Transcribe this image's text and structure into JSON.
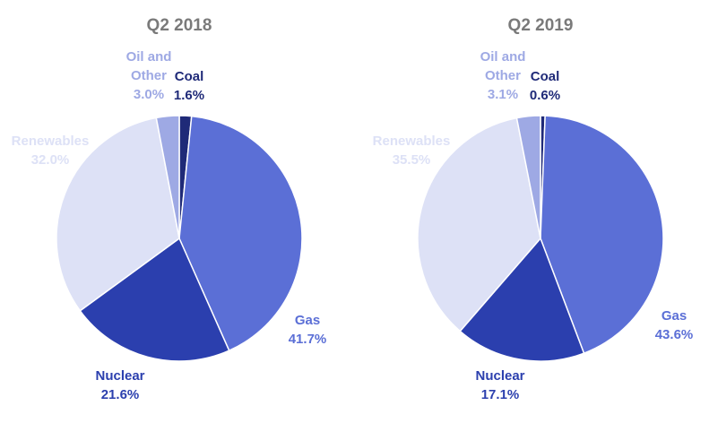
{
  "chart_data": [
    {
      "type": "pie",
      "title": "Q2 2018",
      "categories": [
        "Coal",
        "Gas",
        "Nuclear",
        "Renewables",
        "Oil and Other"
      ],
      "values": [
        1.6,
        41.7,
        21.6,
        32.0,
        3.0
      ],
      "value_labels": [
        "1.6%",
        "41.7%",
        "21.6%",
        "32.0%",
        "3.0%"
      ],
      "label_lines": [
        [
          "Coal"
        ],
        [
          "Gas"
        ],
        [
          "Nuclear"
        ],
        [
          "Renewables"
        ],
        [
          "Oil and",
          "Other"
        ]
      ],
      "colors": [
        "#1f2a78",
        "#5b6fd6",
        "#2b3fae",
        "#dde1f6",
        "#9ea9e4"
      ],
      "label_colors": [
        "#1f2a78",
        "#5b6fd6",
        "#2b3fae",
        "#dde1f6",
        "#9ea9e4"
      ],
      "start_angle_deg": 0,
      "direction": "clockwise"
    },
    {
      "type": "pie",
      "title": "Q2 2019",
      "categories": [
        "Coal",
        "Gas",
        "Nuclear",
        "Renewables",
        "Oil and Other"
      ],
      "values": [
        0.6,
        43.6,
        17.1,
        35.5,
        3.1
      ],
      "value_labels": [
        "0.6%",
        "43.6%",
        "17.1%",
        "35.5%",
        "3.1%"
      ],
      "label_lines": [
        [
          "Coal"
        ],
        [
          "Gas"
        ],
        [
          "Nuclear"
        ],
        [
          "Renewables"
        ],
        [
          "Oil and",
          "Other"
        ]
      ],
      "colors": [
        "#1f2a78",
        "#5b6fd6",
        "#2b3fae",
        "#dde1f6",
        "#9ea9e4"
      ],
      "label_colors": [
        "#1f2a78",
        "#5b6fd6",
        "#2b3fae",
        "#dde1f6",
        "#9ea9e4"
      ],
      "start_angle_deg": 0,
      "direction": "clockwise"
    }
  ]
}
